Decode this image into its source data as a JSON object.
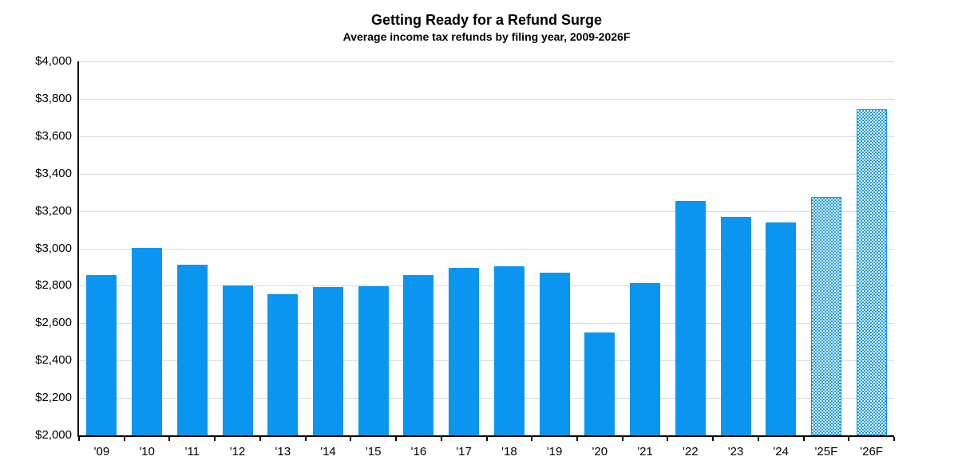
{
  "chart_data": {
    "type": "bar",
    "title": "Getting Ready for a Refund Surge",
    "subtitle": "Average income tax refunds by filing year, 2009-2026F",
    "categories": [
      "'09",
      "'10",
      "'11",
      "'12",
      "'13",
      "'14",
      "'15",
      "'16",
      "'17",
      "'18",
      "'19",
      "'20",
      "'21",
      "'22",
      "'23",
      "'24",
      "'25F",
      "'26F"
    ],
    "values": [
      2859,
      3003,
      2913,
      2803,
      2755,
      2792,
      2797,
      2857,
      2895,
      2905,
      2869,
      2549,
      2815,
      3253,
      3167,
      3138,
      3275,
      3743
    ],
    "forecast": [
      false,
      false,
      false,
      false,
      false,
      false,
      false,
      false,
      false,
      false,
      false,
      false,
      false,
      false,
      false,
      false,
      true,
      true
    ],
    "xlabel": "",
    "ylabel": "",
    "ylim": [
      2000,
      4000
    ],
    "y_step": 200,
    "y_tick_labels": [
      "$2,000",
      "$2,200",
      "$2,400",
      "$2,600",
      "$2,800",
      "$3,000",
      "$3,200",
      "$3,400",
      "$3,600",
      "$3,800",
      "$4,000"
    ],
    "grid": "horizontal",
    "legend": "none",
    "colors": {
      "bar": "#0a96f0",
      "gridline": "#d9d9d9",
      "axis": "#000000",
      "text": "#000000",
      "background": "#ffffff"
    }
  }
}
